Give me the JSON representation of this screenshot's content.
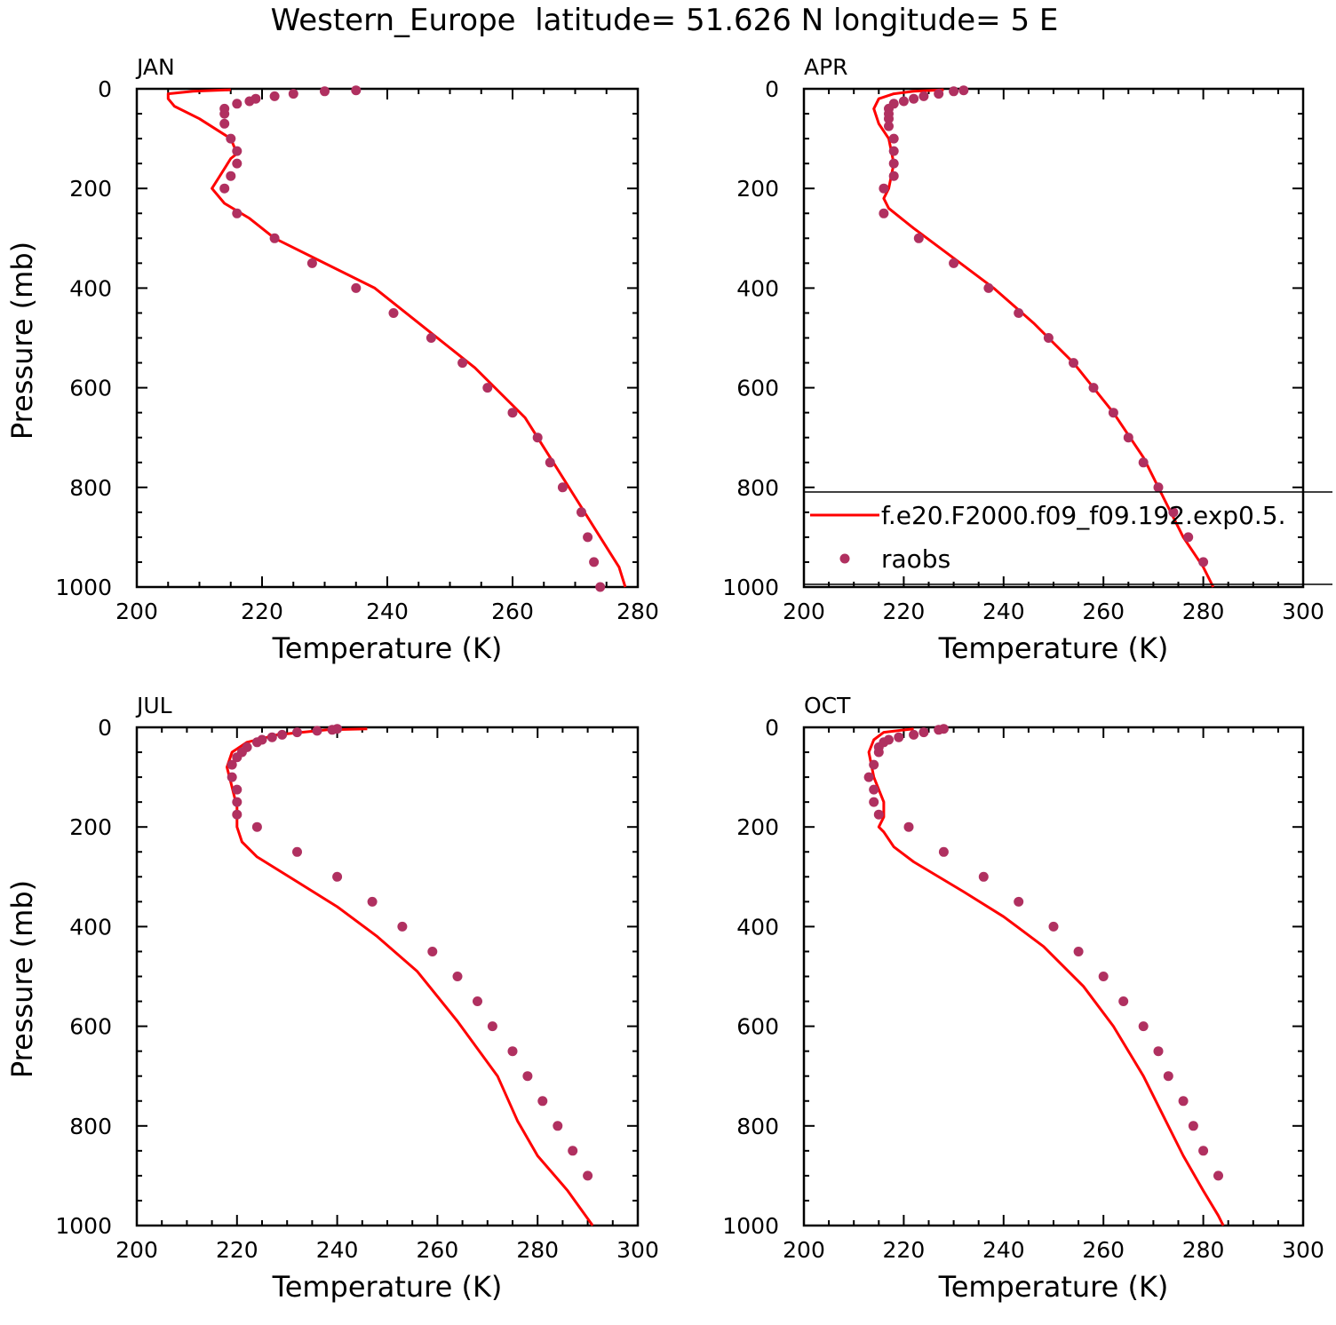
{
  "figure_title": "Western_Europe  latitude= 51.626 N longitude= 5 E",
  "colors": {
    "model_line": "#ff0000",
    "obs_points": "#b03060"
  },
  "legend": {
    "entries": [
      {
        "label": "f.e20.F2000.f09_f09.192.exp0.5.",
        "style": "line"
      },
      {
        "label": "raobs",
        "style": "marker"
      }
    ]
  },
  "chart_data": [
    {
      "type": "line",
      "panel_label": "JAN",
      "xlabel": "Temperature (K)",
      "ylabel": "Pressure (mb)",
      "xlim": [
        200,
        280
      ],
      "ylim": [
        1000,
        0
      ],
      "y_reversed": true,
      "xticks": [
        200,
        220,
        240,
        260,
        280
      ],
      "yticks": [
        0,
        200,
        400,
        600,
        800,
        1000
      ],
      "grid": false,
      "series": [
        {
          "name": "f.e20.F2000.f09_f09.192.exp0.5.",
          "kind": "line",
          "x": [
            215,
            209,
            205,
            205,
            206,
            210,
            215,
            216,
            215,
            213,
            212,
            214,
            218,
            222,
            230,
            238,
            246,
            254,
            262,
            266,
            270,
            274,
            277,
            278
          ],
          "y": [
            2,
            5,
            10,
            20,
            35,
            60,
            100,
            130,
            140,
            180,
            200,
            230,
            260,
            300,
            350,
            400,
            480,
            560,
            660,
            740,
            820,
            900,
            960,
            1000
          ]
        },
        {
          "name": "raobs",
          "kind": "scatter",
          "x": [
            235,
            230,
            225,
            222,
            219,
            218,
            216,
            214,
            214,
            214,
            215,
            216,
            216,
            215,
            214,
            216,
            222,
            228,
            235,
            241,
            247,
            252,
            256,
            260,
            264,
            266,
            268,
            271,
            272,
            273,
            274
          ],
          "y": [
            3,
            5,
            10,
            15,
            20,
            25,
            30,
            40,
            50,
            70,
            100,
            125,
            150,
            175,
            200,
            250,
            300,
            350,
            400,
            450,
            500,
            550,
            600,
            650,
            700,
            750,
            800,
            850,
            900,
            950,
            1000
          ]
        }
      ]
    },
    {
      "type": "line",
      "panel_label": "APR",
      "xlabel": "Temperature (K)",
      "ylabel": "",
      "xlim": [
        200,
        300
      ],
      "ylim": [
        1000,
        0
      ],
      "y_reversed": true,
      "xticks": [
        200,
        220,
        240,
        260,
        280,
        300
      ],
      "yticks": [
        0,
        200,
        400,
        600,
        800,
        1000
      ],
      "grid": false,
      "legend_position": "right",
      "series": [
        {
          "name": "f.e20.F2000.f09_f09.192.exp0.5.",
          "kind": "line",
          "x": [
            228,
            222,
            218,
            215,
            214,
            215,
            217,
            218,
            217,
            216,
            217,
            222,
            230,
            238,
            246,
            254,
            262,
            268,
            272,
            276,
            280,
            282
          ],
          "y": [
            2,
            5,
            10,
            20,
            40,
            70,
            100,
            150,
            200,
            220,
            240,
            280,
            340,
            400,
            470,
            550,
            650,
            740,
            820,
            900,
            960,
            1000
          ]
        },
        {
          "name": "raobs",
          "kind": "scatter",
          "x": [
            232,
            230,
            227,
            224,
            222,
            220,
            218,
            217,
            217,
            217,
            217,
            218,
            218,
            218,
            218,
            216,
            216,
            223,
            230,
            237,
            243,
            249,
            254,
            258,
            262,
            265,
            268,
            271,
            274,
            277,
            280
          ],
          "y": [
            3,
            5,
            10,
            15,
            20,
            25,
            30,
            40,
            50,
            60,
            75,
            100,
            125,
            150,
            175,
            200,
            250,
            300,
            350,
            400,
            450,
            500,
            550,
            600,
            650,
            700,
            750,
            800,
            850,
            900,
            950
          ]
        }
      ]
    },
    {
      "type": "line",
      "panel_label": "JUL",
      "xlabel": "Temperature (K)",
      "ylabel": "Pressure (mb)",
      "xlim": [
        200,
        300
      ],
      "ylim": [
        1000,
        0
      ],
      "y_reversed": true,
      "xticks": [
        200,
        220,
        240,
        260,
        280,
        300
      ],
      "yticks": [
        0,
        200,
        400,
        600,
        800,
        1000
      ],
      "grid": false,
      "series": [
        {
          "name": "f.e20.F2000.f09_f09.192.exp0.5.",
          "kind": "line",
          "x": [
            246,
            238,
            228,
            222,
            219,
            218,
            219,
            220,
            220,
            221,
            224,
            232,
            240,
            248,
            256,
            264,
            272,
            276,
            280,
            286,
            291
          ],
          "y": [
            3,
            5,
            15,
            30,
            50,
            80,
            120,
            160,
            200,
            230,
            260,
            310,
            360,
            420,
            490,
            590,
            700,
            790,
            860,
            930,
            1000
          ]
        },
        {
          "name": "raobs",
          "kind": "scatter",
          "x": [
            240,
            239,
            236,
            232,
            229,
            227,
            225,
            224,
            222,
            221,
            220,
            219,
            219,
            220,
            220,
            220,
            224,
            232,
            240,
            247,
            253,
            259,
            264,
            268,
            271,
            275,
            278,
            281,
            284,
            287,
            290
          ],
          "y": [
            3,
            5,
            7,
            10,
            15,
            20,
            25,
            30,
            40,
            50,
            60,
            75,
            100,
            125,
            150,
            175,
            200,
            250,
            300,
            350,
            400,
            450,
            500,
            550,
            600,
            650,
            700,
            750,
            800,
            850,
            900
          ]
        }
      ]
    },
    {
      "type": "line",
      "panel_label": "OCT",
      "xlabel": "Temperature (K)",
      "ylabel": "",
      "xlim": [
        200,
        300
      ],
      "ylim": [
        1000,
        0
      ],
      "y_reversed": true,
      "xticks": [
        200,
        220,
        240,
        260,
        280,
        300
      ],
      "yticks": [
        0,
        200,
        400,
        600,
        800,
        1000
      ],
      "grid": false,
      "series": [
        {
          "name": "f.e20.F2000.f09_f09.192.exp0.5.",
          "kind": "line",
          "x": [
            222,
            216,
            214,
            213,
            214,
            216,
            216,
            215,
            216,
            218,
            222,
            232,
            240,
            248,
            256,
            262,
            268,
            272,
            276,
            280,
            283,
            284
          ],
          "y": [
            3,
            10,
            25,
            50,
            100,
            150,
            180,
            200,
            210,
            240,
            270,
            330,
            380,
            440,
            520,
            600,
            700,
            780,
            860,
            930,
            980,
            1000
          ]
        },
        {
          "name": "raobs",
          "kind": "scatter",
          "x": [
            228,
            227,
            224,
            222,
            219,
            217,
            216,
            215,
            215,
            214,
            213,
            214,
            214,
            215,
            221,
            228,
            236,
            243,
            250,
            255,
            260,
            264,
            268,
            271,
            273,
            276,
            278,
            280,
            283
          ],
          "y": [
            3,
            5,
            10,
            15,
            20,
            25,
            30,
            40,
            50,
            75,
            100,
            125,
            150,
            175,
            200,
            250,
            300,
            350,
            400,
            450,
            500,
            550,
            600,
            650,
            700,
            750,
            800,
            850,
            900
          ]
        }
      ]
    }
  ]
}
